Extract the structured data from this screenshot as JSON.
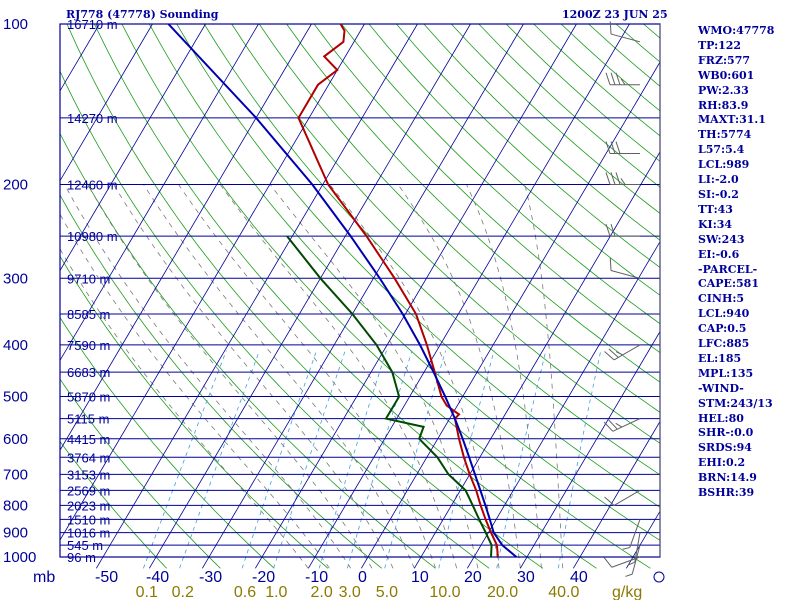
{
  "header": {
    "station": "RJ778 (47778) Sounding",
    "time": "1200Z 23 JUN 25"
  },
  "indices": [
    "WMO:47778",
    "TP:122",
    "FRZ:577",
    "WB0:601",
    "PW:2.33",
    "RH:83.9",
    "MAXT:31.1",
    "TH:5774",
    "L57:5.4",
    "LCL:989",
    "LI:-2.0",
    "SI:-0.2",
    "TT:43",
    "KI:34",
    "SW:243",
    "EI:-0.6",
    "-PARCEL-",
    "CAPE:581",
    "CINH:5",
    "LCL:940",
    "CAP:0.5",
    "LFC:885",
    "EL:185",
    "MPL:135",
    "-WIND-",
    "STM:243/13",
    "HEL:80",
    "SHR-:0.0",
    "SRDS:94",
    "EHI:0.2",
    "BRN:14.9",
    "BSHR:39"
  ],
  "colors": {
    "frame": "#000098",
    "temperature": "#b00000",
    "dewpoint": "#004a00",
    "parcel": "#0000b0",
    "dry_adiabat": "#1e9c1e",
    "moist_adiabat": "#7a7a7a",
    "mixing_ratio": "#3fa0e0",
    "wind": "#606060"
  },
  "chart_data": {
    "type": "line",
    "title": "RJ778 (47778) Sounding",
    "x_unit_label": "mb",
    "mixing_ratio_unit": "g/kg",
    "pressure_levels": [
      {
        "p": 100,
        "label": "100",
        "height": "16710 m"
      },
      {
        "p": 150,
        "label": "",
        "height": "14270 m"
      },
      {
        "p": 200,
        "label": "200",
        "height": "12460 m"
      },
      {
        "p": 250,
        "label": "",
        "height": "10980 m"
      },
      {
        "p": 300,
        "label": "300",
        "height": "9710 m"
      },
      {
        "p": 350,
        "label": "",
        "height": "8585 m"
      },
      {
        "p": 400,
        "label": "400",
        "height": "7590 m"
      },
      {
        "p": 450,
        "label": "",
        "height": "6683 m"
      },
      {
        "p": 500,
        "label": "500",
        "height": "5870 m"
      },
      {
        "p": 550,
        "label": "",
        "height": "5115 m"
      },
      {
        "p": 600,
        "label": "600",
        "height": "4415 m"
      },
      {
        "p": 650,
        "label": "",
        "height": "3764 m"
      },
      {
        "p": 700,
        "label": "700",
        "height": "3153 m"
      },
      {
        "p": 750,
        "label": "",
        "height": "2569 m"
      },
      {
        "p": 800,
        "label": "800",
        "height": "2023 m"
      },
      {
        "p": 850,
        "label": "",
        "height": "1510 m"
      },
      {
        "p": 900,
        "label": "900",
        "height": "1016 m"
      },
      {
        "p": 950,
        "label": "",
        "height": "545 m"
      },
      {
        "p": 1000,
        "label": "1000",
        "height": "96 m"
      }
    ],
    "temperature_ticks": [
      -50,
      -40,
      -30,
      -20,
      -10,
      0,
      10,
      20,
      30,
      40
    ],
    "temperature_tick_labels": [
      "-50",
      "-40",
      "-30",
      "-20",
      "-10",
      "0",
      "10",
      "20",
      "30",
      "40"
    ],
    "mixing_ratio_ticks": [
      0.1,
      0.2,
      0.6,
      1.0,
      2.0,
      3.0,
      5.0,
      10.0,
      20.0,
      40.0
    ],
    "mixing_ratio_labels": [
      "0.1",
      "0.2",
      "0.6",
      "1.0",
      "2.0",
      "3.0",
      "5.0",
      "10.0",
      "20.0",
      "40.0"
    ],
    "series": [
      {
        "key": "temperature",
        "points": [
          [
            1000,
            24.5
          ],
          [
            950,
            23
          ],
          [
            900,
            20.5
          ],
          [
            850,
            18
          ],
          [
            800,
            15.5
          ],
          [
            750,
            13
          ],
          [
            700,
            10
          ],
          [
            650,
            7
          ],
          [
            600,
            4
          ],
          [
            550,
            1
          ],
          [
            540,
            1.3
          ],
          [
            520,
            -2
          ],
          [
            500,
            -4
          ],
          [
            450,
            -8
          ],
          [
            400,
            -12.5
          ],
          [
            350,
            -18
          ],
          [
            300,
            -26
          ],
          [
            250,
            -36
          ],
          [
            200,
            -49
          ],
          [
            150,
            -62
          ],
          [
            130,
            -62
          ],
          [
            122,
            -60
          ],
          [
            115,
            -64
          ],
          [
            108,
            -62
          ],
          [
            103,
            -63
          ],
          [
            100,
            -64.5
          ]
        ]
      },
      {
        "key": "dewpoint",
        "points": [
          [
            1000,
            23.2
          ],
          [
            950,
            22
          ],
          [
            900,
            19.5
          ],
          [
            850,
            16.8
          ],
          [
            800,
            14
          ],
          [
            750,
            11
          ],
          [
            700,
            6
          ],
          [
            650,
            2
          ],
          [
            600,
            -3.5
          ],
          [
            570,
            -4
          ],
          [
            550,
            -12
          ],
          [
            500,
            -12
          ],
          [
            450,
            -16
          ],
          [
            400,
            -22
          ],
          [
            350,
            -30
          ],
          [
            300,
            -40
          ],
          [
            250,
            -51
          ]
        ]
      },
      {
        "key": "parcel",
        "points": [
          [
            1000,
            28
          ],
          [
            950,
            24
          ],
          [
            900,
            21
          ],
          [
            850,
            18.8
          ],
          [
            800,
            16.4
          ],
          [
            750,
            13.8
          ],
          [
            700,
            11
          ],
          [
            650,
            8
          ],
          [
            600,
            4.7
          ],
          [
            550,
            1
          ],
          [
            500,
            -3.3
          ],
          [
            450,
            -8.2
          ],
          [
            400,
            -13.8
          ],
          [
            350,
            -20.5
          ],
          [
            300,
            -28.8
          ],
          [
            250,
            -39
          ],
          [
            200,
            -52
          ],
          [
            150,
            -70
          ],
          [
            100,
            -97
          ]
        ]
      }
    ],
    "wind_barbs": [
      {
        "p": 1000,
        "dir": 250,
        "speed": 10
      },
      {
        "p": 950,
        "dir": 195,
        "speed": 5
      },
      {
        "p": 900,
        "dir": 190,
        "speed": 5
      },
      {
        "p": 850,
        "dir": 200,
        "speed": 5
      },
      {
        "p": 750,
        "dir": 240,
        "speed": 10
      },
      {
        "p": 550,
        "dir": 245,
        "speed": 25
      },
      {
        "p": 400,
        "dir": 240,
        "speed": 25
      },
      {
        "p": 300,
        "dir": 285,
        "speed": 10
      },
      {
        "p": 250,
        "dir": 270,
        "speed": 20
      },
      {
        "p": 200,
        "dir": 270,
        "speed": 35
      },
      {
        "p": 175,
        "dir": 270,
        "speed": 30
      },
      {
        "p": 130,
        "dir": 270,
        "speed": 35
      },
      {
        "p": 108,
        "dir": 285,
        "speed": 10
      }
    ]
  }
}
